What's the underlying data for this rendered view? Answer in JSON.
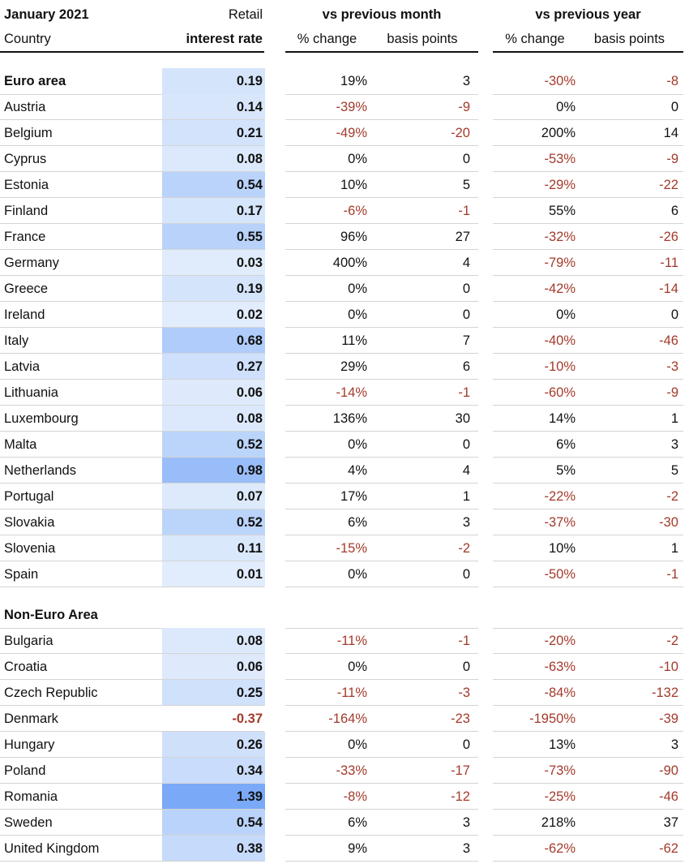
{
  "header": {
    "title": "January 2021",
    "country": "Country",
    "retail_top": "Retail",
    "retail_bottom": "interest rate",
    "group_month": "vs previous month",
    "group_year": "vs previous year",
    "sub": [
      "% change",
      "basis points",
      "% change",
      "basis points"
    ]
  },
  "sections": [
    {
      "label": "Euro area",
      "values": [
        "0.19",
        "19%",
        "3",
        "-30%",
        "-8"
      ],
      "rows": [
        [
          "Austria",
          "0.14",
          "-39%",
          "-9",
          "0%",
          "0"
        ],
        [
          "Belgium",
          "0.21",
          "-49%",
          "-20",
          "200%",
          "14"
        ],
        [
          "Cyprus",
          "0.08",
          "0%",
          "0",
          "-53%",
          "-9"
        ],
        [
          "Estonia",
          "0.54",
          "10%",
          "5",
          "-29%",
          "-22"
        ],
        [
          "Finland",
          "0.17",
          "-6%",
          "-1",
          "55%",
          "6"
        ],
        [
          "France",
          "0.55",
          "96%",
          "27",
          "-32%",
          "-26"
        ],
        [
          "Germany",
          "0.03",
          "400%",
          "4",
          "-79%",
          "-11"
        ],
        [
          "Greece",
          "0.19",
          "0%",
          "0",
          "-42%",
          "-14"
        ],
        [
          "Ireland",
          "0.02",
          "0%",
          "0",
          "0%",
          "0"
        ],
        [
          "Italy",
          "0.68",
          "11%",
          "7",
          "-40%",
          "-46"
        ],
        [
          "Latvia",
          "0.27",
          "29%",
          "6",
          "-10%",
          "-3"
        ],
        [
          "Lithuania",
          "0.06",
          "-14%",
          "-1",
          "-60%",
          "-9"
        ],
        [
          "Luxembourg",
          "0.08",
          "136%",
          "30",
          "14%",
          "1"
        ],
        [
          "Malta",
          "0.52",
          "0%",
          "0",
          "6%",
          "3"
        ],
        [
          "Netherlands",
          "0.98",
          "4%",
          "4",
          "5%",
          "5"
        ],
        [
          "Portugal",
          "0.07",
          "17%",
          "1",
          "-22%",
          "-2"
        ],
        [
          "Slovakia",
          "0.52",
          "6%",
          "3",
          "-37%",
          "-30"
        ],
        [
          "Slovenia",
          "0.11",
          "-15%",
          "-2",
          "10%",
          "1"
        ],
        [
          "Spain",
          "0.01",
          "0%",
          "0",
          "-50%",
          "-1"
        ]
      ]
    },
    {
      "label": "Non-Euro Area",
      "rows": [
        [
          "Bulgaria",
          "0.08",
          "-11%",
          "-1",
          "-20%",
          "-2"
        ],
        [
          "Croatia",
          "0.06",
          "0%",
          "0",
          "-63%",
          "-10"
        ],
        [
          "Czech Republic",
          "0.25",
          "-11%",
          "-3",
          "-84%",
          "-132"
        ],
        [
          "Denmark",
          "-0.37",
          "-164%",
          "-23",
          "-1950%",
          "-39"
        ],
        [
          "Hungary",
          "0.26",
          "0%",
          "0",
          "13%",
          "3"
        ],
        [
          "Poland",
          "0.34",
          "-33%",
          "-17",
          "-73%",
          "-90"
        ],
        [
          "Romania",
          "1.39",
          "-8%",
          "-12",
          "-25%",
          "-46"
        ],
        [
          "Sweden",
          "0.54",
          "6%",
          "3",
          "218%",
          "37"
        ],
        [
          "United Kingdom",
          "0.38",
          "9%",
          "3",
          "-62%",
          "-62"
        ]
      ]
    }
  ]
}
